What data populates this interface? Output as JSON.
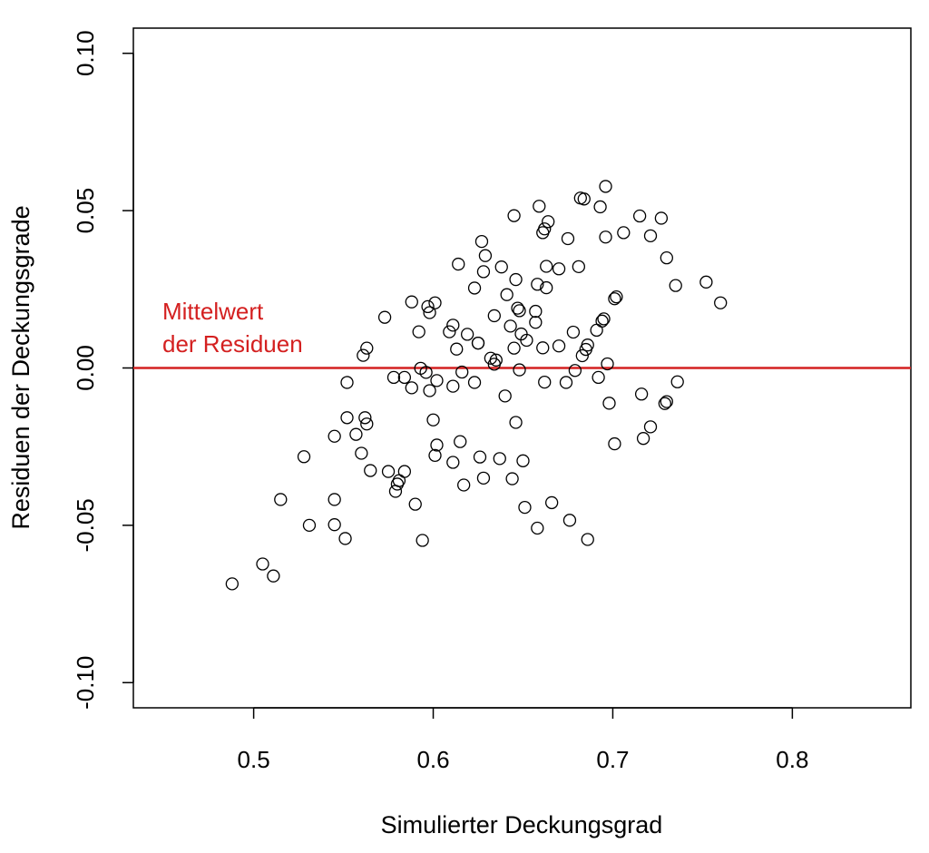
{
  "chart_data": {
    "type": "scatter",
    "title": "",
    "xlabel": "Simulierter Deckungsgrad",
    "ylabel": "Residuen der Deckungsgrade",
    "xlim": [
      0.433,
      0.866
    ],
    "ylim": [
      -0.108,
      0.108
    ],
    "x_ticks": [
      "0.5",
      "0.6",
      "0.7",
      "0.8"
    ],
    "y_ticks": [
      "-0.10",
      "-0.05",
      "0.00",
      "0.05",
      "0.10"
    ],
    "grid": false,
    "reference_line": {
      "y": 0.0,
      "color": "#d42020",
      "label_lines": [
        "Mittelwert",
        "der Residuen"
      ]
    },
    "marker": "open-circle",
    "points": [
      [
        0.488,
        -0.0686
      ],
      [
        0.505,
        -0.0623
      ],
      [
        0.511,
        -0.0661
      ],
      [
        0.515,
        -0.0418
      ],
      [
        0.528,
        -0.0282
      ],
      [
        0.531,
        -0.05
      ],
      [
        0.545,
        -0.0498
      ],
      [
        0.545,
        -0.0418
      ],
      [
        0.545,
        -0.0217
      ],
      [
        0.551,
        -0.0542
      ],
      [
        0.552,
        -0.0158
      ],
      [
        0.552,
        -0.0046
      ],
      [
        0.557,
        -0.0211
      ],
      [
        0.56,
        -0.0271
      ],
      [
        0.561,
        0.004
      ],
      [
        0.562,
        -0.0158
      ],
      [
        0.563,
        -0.0178
      ],
      [
        0.563,
        0.0063
      ],
      [
        0.565,
        -0.0326
      ],
      [
        0.573,
        0.0161
      ],
      [
        0.575,
        -0.0329
      ],
      [
        0.578,
        -0.003
      ],
      [
        0.579,
        -0.0392
      ],
      [
        0.58,
        -0.0369
      ],
      [
        0.581,
        -0.0358
      ],
      [
        0.584,
        -0.0329
      ],
      [
        0.584,
        -0.003
      ],
      [
        0.588,
        -0.0063
      ],
      [
        0.588,
        0.021
      ],
      [
        0.59,
        -0.0433
      ],
      [
        0.592,
        0.0115
      ],
      [
        0.593,
        -0.0001
      ],
      [
        0.594,
        -0.0548
      ],
      [
        0.596,
        -0.0014
      ],
      [
        0.597,
        0.0195
      ],
      [
        0.598,
        0.0176
      ],
      [
        0.598,
        -0.0072
      ],
      [
        0.6,
        -0.0165
      ],
      [
        0.601,
        -0.0278
      ],
      [
        0.601,
        0.0207
      ],
      [
        0.602,
        -0.004
      ],
      [
        0.602,
        -0.0245
      ],
      [
        0.609,
        0.0115
      ],
      [
        0.611,
        0.0136
      ],
      [
        0.611,
        -0.03
      ],
      [
        0.611,
        -0.0058
      ],
      [
        0.613,
        0.006
      ],
      [
        0.614,
        0.033
      ],
      [
        0.615,
        -0.0234
      ],
      [
        0.616,
        -0.0013
      ],
      [
        0.617,
        -0.0372
      ],
      [
        0.619,
        0.0107
      ],
      [
        0.623,
        0.0254
      ],
      [
        0.623,
        -0.0046
      ],
      [
        0.625,
        0.0079
      ],
      [
        0.625,
        0.0079
      ],
      [
        0.626,
        -0.0283
      ],
      [
        0.627,
        0.0402
      ],
      [
        0.628,
        0.0306
      ],
      [
        0.628,
        -0.035
      ],
      [
        0.629,
        0.0357
      ],
      [
        0.632,
        0.0031
      ],
      [
        0.634,
        0.0012
      ],
      [
        0.634,
        0.0166
      ],
      [
        0.635,
        0.0025
      ],
      [
        0.637,
        -0.0288
      ],
      [
        0.638,
        0.0321
      ],
      [
        0.64,
        -0.0089
      ],
      [
        0.641,
        0.0233
      ],
      [
        0.643,
        0.0133
      ],
      [
        0.644,
        -0.0352
      ],
      [
        0.645,
        0.0063
      ],
      [
        0.645,
        0.0484
      ],
      [
        0.646,
        -0.0173
      ],
      [
        0.646,
        0.0281
      ],
      [
        0.647,
        0.019
      ],
      [
        0.648,
        0.0182
      ],
      [
        0.648,
        -0.0006
      ],
      [
        0.649,
        0.0108
      ],
      [
        0.65,
        -0.0295
      ],
      [
        0.651,
        -0.0443
      ],
      [
        0.652,
        0.0088
      ],
      [
        0.657,
        0.018
      ],
      [
        0.657,
        0.0145
      ],
      [
        0.658,
        0.0266
      ],
      [
        0.658,
        -0.0509
      ],
      [
        0.659,
        0.0514
      ],
      [
        0.661,
        0.0064
      ],
      [
        0.661,
        0.043
      ],
      [
        0.662,
        0.0442
      ],
      [
        0.662,
        -0.0045
      ],
      [
        0.663,
        0.0323
      ],
      [
        0.663,
        0.0255
      ],
      [
        0.664,
        0.0465
      ],
      [
        0.666,
        -0.0428
      ],
      [
        0.67,
        0.0315
      ],
      [
        0.67,
        0.007
      ],
      [
        0.674,
        -0.0046
      ],
      [
        0.675,
        0.0411
      ],
      [
        0.676,
        -0.0484
      ],
      [
        0.678,
        0.0114
      ],
      [
        0.679,
        -0.0008
      ],
      [
        0.681,
        0.0322
      ],
      [
        0.682,
        0.054
      ],
      [
        0.683,
        0.0039
      ],
      [
        0.684,
        0.0537
      ],
      [
        0.685,
        0.0059
      ],
      [
        0.686,
        0.0073
      ],
      [
        0.686,
        -0.0545
      ],
      [
        0.691,
        0.012
      ],
      [
        0.692,
        -0.003
      ],
      [
        0.693,
        0.0512
      ],
      [
        0.694,
        0.0149
      ],
      [
        0.695,
        0.0156
      ],
      [
        0.696,
        0.0416
      ],
      [
        0.696,
        0.0577
      ],
      [
        0.697,
        0.0013
      ],
      [
        0.698,
        -0.0112
      ],
      [
        0.701,
        0.022
      ],
      [
        0.701,
        -0.0241
      ],
      [
        0.702,
        0.0226
      ],
      [
        0.706,
        0.043
      ],
      [
        0.715,
        0.0483
      ],
      [
        0.716,
        -0.0083
      ],
      [
        0.717,
        -0.0224
      ],
      [
        0.721,
        0.042
      ],
      [
        0.721,
        -0.0187
      ],
      [
        0.727,
        0.0476
      ],
      [
        0.729,
        -0.0113
      ],
      [
        0.73,
        0.035
      ],
      [
        0.73,
        -0.0107
      ],
      [
        0.735,
        0.0262
      ],
      [
        0.736,
        -0.0044
      ],
      [
        0.752,
        0.0273
      ],
      [
        0.76,
        0.0207
      ]
    ]
  }
}
